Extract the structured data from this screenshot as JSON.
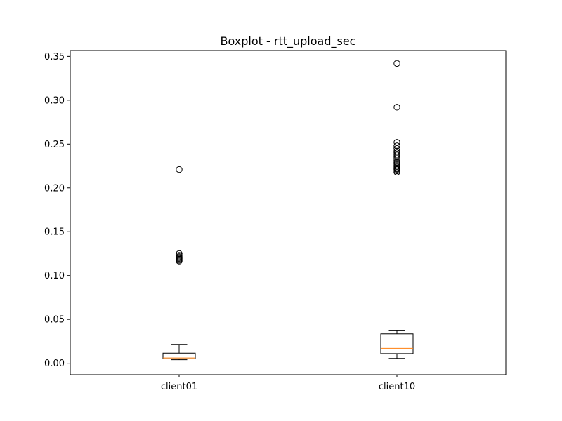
{
  "chart_data": {
    "type": "boxplot",
    "title": "Boxplot - rtt_upload_sec",
    "xlabel": "",
    "ylabel": "",
    "ylim": [
      -0.0131,
      0.3567
    ],
    "grid": false,
    "yticks": [
      0.0,
      0.05,
      0.1,
      0.15,
      0.2,
      0.25,
      0.3,
      0.35
    ],
    "ytick_labels": [
      "0.00",
      "0.05",
      "0.10",
      "0.15",
      "0.20",
      "0.25",
      "0.30",
      "0.35"
    ],
    "categories": [
      "client01",
      "client10"
    ],
    "boxes": [
      {
        "name": "client01",
        "whisker_low": 0.004,
        "q1": 0.005,
        "median": 0.006,
        "q3": 0.0115,
        "whisker_high": 0.0215,
        "outliers": [
          0.1165,
          0.1175,
          0.1185,
          0.1195,
          0.1205,
          0.1215,
          0.123,
          0.125,
          0.221
        ]
      },
      {
        "name": "client10",
        "whisker_low": 0.0055,
        "q1": 0.011,
        "median": 0.017,
        "q3": 0.0335,
        "whisker_high": 0.037,
        "outliers": [
          0.218,
          0.2195,
          0.221,
          0.222,
          0.223,
          0.2245,
          0.226,
          0.2275,
          0.229,
          0.231,
          0.233,
          0.235,
          0.2375,
          0.24,
          0.242,
          0.245,
          0.248,
          0.252,
          0.292,
          0.342
        ]
      }
    ],
    "colors": {
      "box": "#000000",
      "median": "#ff7f0e",
      "outlier": "#000000"
    }
  }
}
